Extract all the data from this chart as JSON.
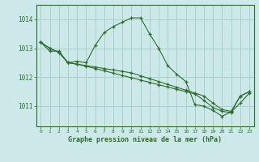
{
  "title": "Graphe pression niveau de la mer (hPa)",
  "bg_color": "#cce8e8",
  "grid_color": "#a8d0d0",
  "line_color": "#2d6e2d",
  "xlim": [
    -0.5,
    23.5
  ],
  "ylim": [
    1010.3,
    1014.5
  ],
  "yticks": [
    1011,
    1012,
    1013,
    1014
  ],
  "xticks": [
    0,
    1,
    2,
    3,
    4,
    5,
    6,
    7,
    8,
    9,
    10,
    11,
    12,
    13,
    14,
    15,
    16,
    17,
    18,
    19,
    20,
    21,
    22,
    23
  ],
  "series1_x": [
    0,
    1,
    2,
    3,
    4,
    5,
    6,
    7,
    8,
    9,
    10,
    11,
    12,
    13,
    14,
    15,
    16,
    17,
    18,
    19,
    20,
    21,
    22,
    23
  ],
  "series1_y": [
    1013.2,
    1012.9,
    1012.9,
    1012.5,
    1012.55,
    1012.5,
    1013.1,
    1013.55,
    1013.75,
    1013.9,
    1014.05,
    1014.05,
    1013.5,
    1013.0,
    1012.4,
    1012.1,
    1011.85,
    1011.05,
    1011.0,
    1010.85,
    1010.65,
    1010.8,
    1011.1,
    1011.45
  ],
  "series2_x": [
    0,
    1,
    2,
    3,
    4,
    5,
    6,
    7,
    8,
    9,
    10,
    11,
    12,
    13,
    14,
    15,
    16,
    17,
    18,
    19,
    20,
    21,
    22,
    23
  ],
  "series2_y": [
    1013.2,
    1013.0,
    1012.85,
    1012.5,
    1012.45,
    1012.4,
    1012.35,
    1012.3,
    1012.25,
    1012.2,
    1012.15,
    1012.05,
    1011.95,
    1011.85,
    1011.75,
    1011.65,
    1011.55,
    1011.45,
    1011.35,
    1011.1,
    1010.88,
    1010.82,
    1011.35,
    1011.5
  ],
  "series3_x": [
    0,
    1,
    2,
    3,
    4,
    5,
    6,
    7,
    8,
    9,
    10,
    11,
    12,
    13,
    14,
    15,
    16,
    17,
    18,
    19,
    20,
    21,
    22,
    23
  ],
  "series3_y": [
    1013.2,
    1013.0,
    1012.85,
    1012.5,
    1012.45,
    1012.38,
    1012.3,
    1012.22,
    1012.14,
    1012.06,
    1011.98,
    1011.9,
    1011.82,
    1011.74,
    1011.66,
    1011.58,
    1011.5,
    1011.42,
    1011.2,
    1010.95,
    1010.82,
    1010.78,
    1011.35,
    1011.5
  ]
}
